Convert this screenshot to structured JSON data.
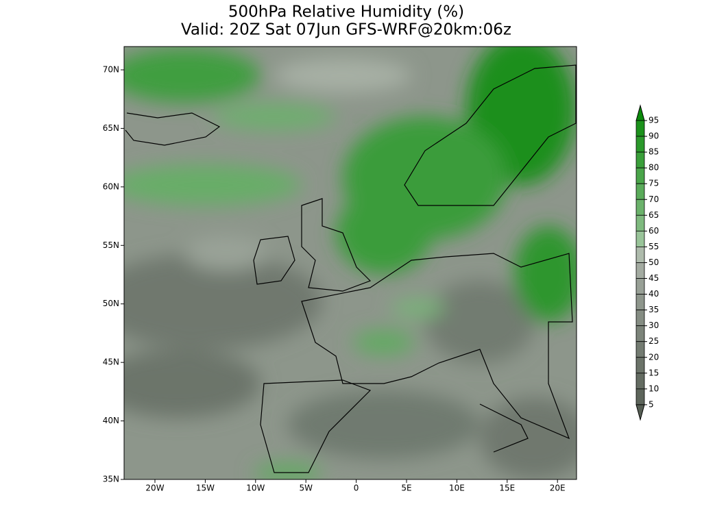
{
  "title": {
    "line1": "500hPa Relative Humidity (%)",
    "line2": "Valid: 20Z Sat 07Jun GFS-WRF@20km:06z"
  },
  "map": {
    "lat_labels": [
      "70N",
      "65N",
      "60N",
      "55N",
      "50N",
      "45N",
      "40N",
      "35N"
    ],
    "lon_labels": [
      "20W",
      "15W",
      "10W",
      "5W",
      "0",
      "5E",
      "10E",
      "15E",
      "20E"
    ]
  },
  "colorbar": {
    "labels": [
      "95",
      "90",
      "85",
      "80",
      "75",
      "70",
      "65",
      "60",
      "55",
      "50",
      "45",
      "40",
      "35",
      "30",
      "25",
      "20",
      "15",
      "10",
      "5"
    ]
  }
}
